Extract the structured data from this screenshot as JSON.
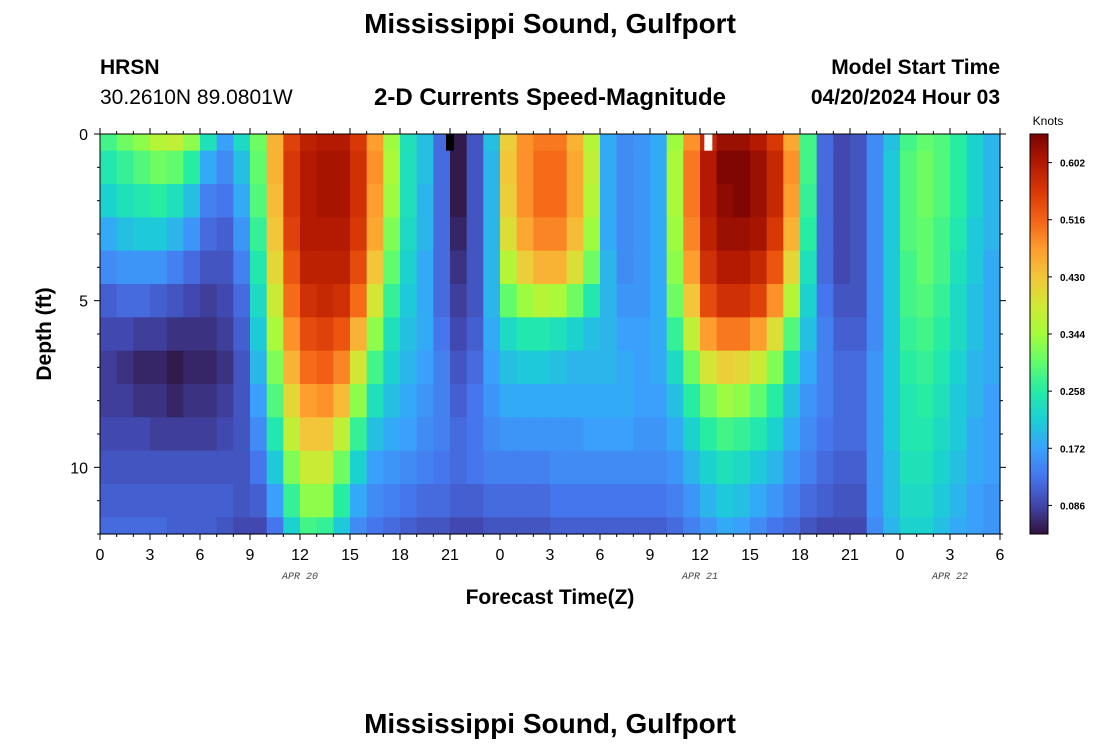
{
  "header": {
    "title": "Mississippi Sound, Gulfport",
    "model_name": "HRSN",
    "coordinates": "30.2610N  89.0801W",
    "subtitle": "2-D Currents Speed-Magnitude",
    "start_label": "Model Start Time",
    "start_time": "04/20/2024 Hour 03"
  },
  "footer": {
    "title": "Mississippi Sound, Gulfport"
  },
  "colors": {
    "colormap": [
      "#30123b",
      "#4145ab",
      "#4675ed",
      "#39a2fc",
      "#1bcfd4",
      "#24eca6",
      "#61fc6c",
      "#a4fc3b",
      "#d1e834",
      "#f3c63a",
      "#fe9b2d",
      "#f36315",
      "#d93806",
      "#b11901",
      "#7a0403"
    ]
  },
  "chart_data": {
    "type": "heatmap",
    "title": "2-D Currents Speed-Magnitude",
    "xlabel": "Forecast Time(Z)",
    "ylabel": "Depth (ft)",
    "x_range_hours": [
      0,
      54
    ],
    "y_range_ft": [
      0,
      12
    ],
    "x_ticks": [
      {
        "hour": 0,
        "label": "0"
      },
      {
        "hour": 3,
        "label": "3"
      },
      {
        "hour": 6,
        "label": "6"
      },
      {
        "hour": 9,
        "label": "9"
      },
      {
        "hour": 12,
        "label": "12"
      },
      {
        "hour": 15,
        "label": "15"
      },
      {
        "hour": 18,
        "label": "18"
      },
      {
        "hour": 21,
        "label": "21"
      },
      {
        "hour": 24,
        "label": "0"
      },
      {
        "hour": 27,
        "label": "3"
      },
      {
        "hour": 30,
        "label": "6"
      },
      {
        "hour": 33,
        "label": "9"
      },
      {
        "hour": 36,
        "label": "12"
      },
      {
        "hour": 39,
        "label": "15"
      },
      {
        "hour": 42,
        "label": "18"
      },
      {
        "hour": 45,
        "label": "21"
      },
      {
        "hour": 48,
        "label": "0"
      },
      {
        "hour": 51,
        "label": "3"
      },
      {
        "hour": 54,
        "label": "6"
      }
    ],
    "date_labels": [
      {
        "hour": 12,
        "label": "APR 20"
      },
      {
        "hour": 36,
        "label": "APR 21"
      },
      {
        "hour": 51,
        "label": "APR 22"
      }
    ],
    "y_ticks": [
      {
        "depth": 0,
        "label": "0"
      },
      {
        "depth": 5,
        "label": "5"
      },
      {
        "depth": 10,
        "label": "10"
      }
    ],
    "colorbar": {
      "label": "Knots",
      "min": 0.043,
      "max": 0.645,
      "ticks": [
        0.086,
        0.172,
        0.258,
        0.344,
        0.43,
        0.516,
        0.602
      ],
      "tick_labels": [
        "0.086",
        "0.172",
        "0.258",
        "0.344",
        "0.430",
        "0.516",
        "0.602"
      ]
    },
    "depth_levels_ft": [
      0,
      1,
      2,
      3,
      4,
      5,
      6,
      7,
      8,
      9,
      10,
      11,
      12
    ],
    "time_columns": 54,
    "speed_knots_by_depth": [
      [
        0.28,
        0.31,
        0.33,
        0.36,
        0.37,
        0.33,
        0.24,
        0.17,
        0.23,
        0.31,
        0.45,
        0.55,
        0.59,
        0.6,
        0.6,
        0.56,
        0.47,
        0.34,
        0.24,
        0.2,
        0.12,
        0.05,
        0.1,
        0.2,
        0.42,
        0.48,
        0.5,
        0.5,
        0.45,
        0.36,
        0.18,
        0.15,
        0.16,
        0.18,
        0.34,
        0.48,
        0.58,
        0.62,
        0.62,
        0.6,
        0.56,
        0.46,
        0.28,
        0.12,
        0.09,
        0.1,
        0.15,
        0.2,
        0.28,
        0.3,
        0.29,
        0.26,
        0.22,
        0.19
      ],
      [
        0.25,
        0.27,
        0.29,
        0.31,
        0.3,
        0.26,
        0.18,
        0.15,
        0.2,
        0.3,
        0.45,
        0.56,
        0.6,
        0.61,
        0.61,
        0.57,
        0.48,
        0.35,
        0.24,
        0.2,
        0.12,
        0.05,
        0.1,
        0.19,
        0.43,
        0.48,
        0.51,
        0.51,
        0.46,
        0.37,
        0.18,
        0.15,
        0.16,
        0.18,
        0.35,
        0.5,
        0.6,
        0.64,
        0.64,
        0.62,
        0.58,
        0.48,
        0.28,
        0.12,
        0.09,
        0.1,
        0.15,
        0.21,
        0.29,
        0.31,
        0.29,
        0.26,
        0.22,
        0.19
      ],
      [
        0.22,
        0.24,
        0.25,
        0.26,
        0.24,
        0.2,
        0.14,
        0.13,
        0.18,
        0.29,
        0.44,
        0.56,
        0.6,
        0.61,
        0.61,
        0.57,
        0.47,
        0.34,
        0.24,
        0.19,
        0.12,
        0.05,
        0.1,
        0.19,
        0.42,
        0.48,
        0.51,
        0.51,
        0.46,
        0.36,
        0.18,
        0.15,
        0.16,
        0.18,
        0.35,
        0.5,
        0.6,
        0.63,
        0.64,
        0.62,
        0.58,
        0.47,
        0.27,
        0.12,
        0.09,
        0.1,
        0.15,
        0.21,
        0.29,
        0.31,
        0.29,
        0.26,
        0.22,
        0.19
      ],
      [
        0.18,
        0.2,
        0.21,
        0.21,
        0.19,
        0.16,
        0.12,
        0.11,
        0.16,
        0.27,
        0.43,
        0.55,
        0.6,
        0.6,
        0.6,
        0.56,
        0.46,
        0.32,
        0.23,
        0.19,
        0.12,
        0.06,
        0.1,
        0.19,
        0.4,
        0.46,
        0.49,
        0.49,
        0.44,
        0.34,
        0.18,
        0.15,
        0.16,
        0.18,
        0.34,
        0.49,
        0.59,
        0.62,
        0.62,
        0.61,
        0.56,
        0.45,
        0.26,
        0.12,
        0.09,
        0.1,
        0.15,
        0.21,
        0.29,
        0.3,
        0.28,
        0.25,
        0.21,
        0.19
      ],
      [
        0.15,
        0.16,
        0.16,
        0.16,
        0.14,
        0.12,
        0.1,
        0.1,
        0.14,
        0.25,
        0.41,
        0.53,
        0.59,
        0.59,
        0.59,
        0.54,
        0.43,
        0.3,
        0.22,
        0.18,
        0.12,
        0.07,
        0.1,
        0.19,
        0.36,
        0.42,
        0.45,
        0.45,
        0.4,
        0.31,
        0.19,
        0.15,
        0.16,
        0.18,
        0.33,
        0.47,
        0.57,
        0.6,
        0.6,
        0.58,
        0.53,
        0.41,
        0.24,
        0.12,
        0.09,
        0.1,
        0.15,
        0.21,
        0.28,
        0.3,
        0.28,
        0.24,
        0.21,
        0.18
      ],
      [
        0.11,
        0.12,
        0.12,
        0.11,
        0.1,
        0.09,
        0.08,
        0.09,
        0.12,
        0.23,
        0.38,
        0.51,
        0.57,
        0.58,
        0.57,
        0.51,
        0.39,
        0.27,
        0.21,
        0.18,
        0.12,
        0.08,
        0.1,
        0.19,
        0.3,
        0.34,
        0.36,
        0.35,
        0.31,
        0.25,
        0.19,
        0.16,
        0.16,
        0.18,
        0.31,
        0.43,
        0.54,
        0.57,
        0.57,
        0.55,
        0.48,
        0.36,
        0.22,
        0.13,
        0.1,
        0.1,
        0.15,
        0.21,
        0.28,
        0.29,
        0.27,
        0.23,
        0.2,
        0.18
      ],
      [
        0.09,
        0.09,
        0.08,
        0.08,
        0.07,
        0.07,
        0.07,
        0.08,
        0.11,
        0.21,
        0.35,
        0.48,
        0.54,
        0.55,
        0.53,
        0.45,
        0.33,
        0.24,
        0.2,
        0.18,
        0.13,
        0.09,
        0.11,
        0.18,
        0.23,
        0.25,
        0.25,
        0.24,
        0.22,
        0.2,
        0.19,
        0.17,
        0.17,
        0.18,
        0.27,
        0.37,
        0.47,
        0.5,
        0.5,
        0.47,
        0.4,
        0.29,
        0.2,
        0.14,
        0.11,
        0.11,
        0.15,
        0.21,
        0.27,
        0.28,
        0.26,
        0.23,
        0.2,
        0.18
      ],
      [
        0.08,
        0.07,
        0.06,
        0.06,
        0.05,
        0.06,
        0.06,
        0.07,
        0.1,
        0.19,
        0.32,
        0.45,
        0.51,
        0.52,
        0.49,
        0.39,
        0.28,
        0.22,
        0.19,
        0.17,
        0.14,
        0.1,
        0.12,
        0.17,
        0.2,
        0.21,
        0.21,
        0.2,
        0.19,
        0.19,
        0.19,
        0.18,
        0.17,
        0.18,
        0.23,
        0.31,
        0.39,
        0.42,
        0.41,
        0.38,
        0.32,
        0.24,
        0.18,
        0.14,
        0.12,
        0.12,
        0.16,
        0.21,
        0.26,
        0.27,
        0.25,
        0.22,
        0.19,
        0.18
      ],
      [
        0.08,
        0.08,
        0.07,
        0.07,
        0.06,
        0.07,
        0.07,
        0.08,
        0.1,
        0.17,
        0.29,
        0.41,
        0.47,
        0.48,
        0.44,
        0.33,
        0.24,
        0.2,
        0.18,
        0.16,
        0.14,
        0.11,
        0.13,
        0.16,
        0.18,
        0.18,
        0.18,
        0.18,
        0.18,
        0.18,
        0.18,
        0.18,
        0.17,
        0.17,
        0.2,
        0.26,
        0.31,
        0.34,
        0.33,
        0.3,
        0.26,
        0.2,
        0.16,
        0.14,
        0.12,
        0.12,
        0.16,
        0.21,
        0.25,
        0.26,
        0.24,
        0.21,
        0.19,
        0.17
      ],
      [
        0.09,
        0.09,
        0.09,
        0.08,
        0.08,
        0.08,
        0.08,
        0.09,
        0.1,
        0.15,
        0.25,
        0.37,
        0.43,
        0.43,
        0.37,
        0.27,
        0.2,
        0.18,
        0.17,
        0.15,
        0.14,
        0.12,
        0.13,
        0.15,
        0.16,
        0.16,
        0.16,
        0.16,
        0.16,
        0.17,
        0.17,
        0.17,
        0.16,
        0.16,
        0.18,
        0.22,
        0.26,
        0.28,
        0.27,
        0.25,
        0.22,
        0.18,
        0.15,
        0.13,
        0.12,
        0.12,
        0.16,
        0.21,
        0.25,
        0.25,
        0.23,
        0.21,
        0.18,
        0.17
      ],
      [
        0.1,
        0.1,
        0.1,
        0.1,
        0.1,
        0.1,
        0.1,
        0.1,
        0.1,
        0.13,
        0.21,
        0.32,
        0.38,
        0.38,
        0.31,
        0.22,
        0.17,
        0.16,
        0.15,
        0.14,
        0.13,
        0.12,
        0.13,
        0.14,
        0.14,
        0.14,
        0.14,
        0.15,
        0.15,
        0.15,
        0.15,
        0.15,
        0.15,
        0.15,
        0.16,
        0.19,
        0.22,
        0.24,
        0.23,
        0.21,
        0.19,
        0.16,
        0.14,
        0.12,
        0.11,
        0.11,
        0.16,
        0.2,
        0.24,
        0.24,
        0.22,
        0.2,
        0.18,
        0.17
      ],
      [
        0.11,
        0.11,
        0.11,
        0.11,
        0.11,
        0.11,
        0.11,
        0.11,
        0.1,
        0.11,
        0.17,
        0.27,
        0.33,
        0.33,
        0.26,
        0.18,
        0.15,
        0.14,
        0.13,
        0.12,
        0.12,
        0.11,
        0.11,
        0.12,
        0.12,
        0.12,
        0.12,
        0.13,
        0.13,
        0.13,
        0.13,
        0.13,
        0.13,
        0.13,
        0.14,
        0.16,
        0.19,
        0.21,
        0.2,
        0.18,
        0.16,
        0.14,
        0.12,
        0.11,
        0.1,
        0.1,
        0.16,
        0.2,
        0.23,
        0.23,
        0.21,
        0.19,
        0.17,
        0.16
      ],
      [
        0.12,
        0.12,
        0.12,
        0.12,
        0.11,
        0.11,
        0.11,
        0.1,
        0.09,
        0.09,
        0.13,
        0.22,
        0.28,
        0.27,
        0.21,
        0.15,
        0.13,
        0.12,
        0.11,
        0.1,
        0.1,
        0.09,
        0.09,
        0.1,
        0.1,
        0.1,
        0.1,
        0.11,
        0.11,
        0.11,
        0.11,
        0.11,
        0.11,
        0.11,
        0.12,
        0.14,
        0.16,
        0.18,
        0.17,
        0.15,
        0.13,
        0.12,
        0.1,
        0.09,
        0.09,
        0.09,
        0.15,
        0.19,
        0.22,
        0.22,
        0.2,
        0.18,
        0.17,
        0.16
      ]
    ],
    "markers": [
      {
        "hour": 21,
        "depth_top": 0,
        "depth_bottom": 0.5,
        "color": "#000000",
        "label": "current direction marker"
      },
      {
        "hour": 36.5,
        "depth_top": 0,
        "depth_bottom": 0.5,
        "color": "#ffffff",
        "label": "current direction marker"
      }
    ]
  },
  "axes_labels": {
    "x": "Forecast Time(Z)",
    "y": "Depth (ft)"
  }
}
